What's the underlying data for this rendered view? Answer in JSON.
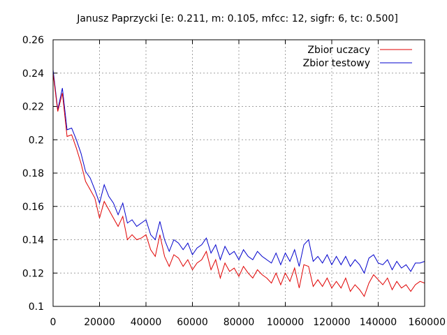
{
  "chart_data": {
    "type": "line",
    "title": "Janusz Paprzycki [e: 0.211, m: 0.105, mfcc: 12, sigfr: 6, tc: 0.500]",
    "xlabel": "",
    "ylabel": "",
    "xlim": [
      0,
      160000
    ],
    "ylim": [
      0.1,
      0.26
    ],
    "xticks": [
      0,
      20000,
      40000,
      60000,
      80000,
      100000,
      120000,
      140000,
      160000
    ],
    "yticks": [
      0.1,
      0.12,
      0.14,
      0.16,
      0.18,
      0.2,
      0.22,
      0.24,
      0.26
    ],
    "xtick_labels": [
      "0",
      "20000",
      "40000",
      "60000",
      "80000",
      "100000",
      "120000",
      "140000",
      "160000"
    ],
    "ytick_labels": [
      "0.1",
      "0.12",
      "0.14",
      "0.16",
      "0.18",
      "0.2",
      "0.22",
      "0.24",
      "0.26"
    ],
    "grid": true,
    "legend_position": "top-right",
    "series": [
      {
        "name": "Zbior uczacy",
        "color": "#e00000",
        "x": [
          0,
          2000,
          4000,
          6000,
          8000,
          10000,
          12000,
          14000,
          16000,
          18000,
          20000,
          22000,
          24000,
          26000,
          28000,
          30000,
          32000,
          34000,
          36000,
          38000,
          40000,
          42000,
          44000,
          46000,
          48000,
          50000,
          52000,
          54000,
          56000,
          58000,
          60000,
          62000,
          64000,
          66000,
          68000,
          70000,
          72000,
          74000,
          76000,
          78000,
          80000,
          82000,
          84000,
          86000,
          88000,
          90000,
          92000,
          94000,
          96000,
          98000,
          100000,
          102000,
          104000,
          106000,
          108000,
          110000,
          112000,
          114000,
          116000,
          118000,
          120000,
          122000,
          124000,
          126000,
          128000,
          130000,
          132000,
          134000,
          136000,
          138000,
          140000,
          142000,
          144000,
          146000,
          148000,
          150000,
          152000,
          154000,
          156000,
          158000,
          160000
        ],
        "y": [
          0.24,
          0.217,
          0.228,
          0.202,
          0.203,
          0.195,
          0.186,
          0.175,
          0.17,
          0.165,
          0.153,
          0.163,
          0.158,
          0.153,
          0.148,
          0.154,
          0.14,
          0.143,
          0.14,
          0.141,
          0.143,
          0.134,
          0.13,
          0.143,
          0.13,
          0.124,
          0.131,
          0.129,
          0.124,
          0.128,
          0.122,
          0.126,
          0.128,
          0.133,
          0.122,
          0.128,
          0.117,
          0.126,
          0.121,
          0.123,
          0.118,
          0.124,
          0.12,
          0.117,
          0.122,
          0.119,
          0.117,
          0.114,
          0.12,
          0.113,
          0.12,
          0.115,
          0.123,
          0.111,
          0.125,
          0.124,
          0.112,
          0.116,
          0.112,
          0.117,
          0.111,
          0.115,
          0.111,
          0.117,
          0.109,
          0.113,
          0.11,
          0.106,
          0.114,
          0.119,
          0.116,
          0.113,
          0.117,
          0.11,
          0.115,
          0.111,
          0.113,
          0.109,
          0.113,
          0.115,
          0.114
        ]
      },
      {
        "name": "Zbior testowy",
        "color": "#0000cc",
        "x": [
          0,
          2000,
          4000,
          6000,
          8000,
          10000,
          12000,
          14000,
          16000,
          18000,
          20000,
          22000,
          24000,
          26000,
          28000,
          30000,
          32000,
          34000,
          36000,
          38000,
          40000,
          42000,
          44000,
          46000,
          48000,
          50000,
          52000,
          54000,
          56000,
          58000,
          60000,
          62000,
          64000,
          66000,
          68000,
          70000,
          72000,
          74000,
          76000,
          78000,
          80000,
          82000,
          84000,
          86000,
          88000,
          90000,
          92000,
          94000,
          96000,
          98000,
          100000,
          102000,
          104000,
          106000,
          108000,
          110000,
          112000,
          114000,
          116000,
          118000,
          120000,
          122000,
          124000,
          126000,
          128000,
          130000,
          132000,
          134000,
          136000,
          138000,
          140000,
          142000,
          144000,
          146000,
          148000,
          150000,
          152000,
          154000,
          156000,
          158000,
          160000
        ],
        "y": [
          0.242,
          0.218,
          0.231,
          0.206,
          0.207,
          0.2,
          0.192,
          0.181,
          0.177,
          0.17,
          0.162,
          0.173,
          0.166,
          0.162,
          0.155,
          0.162,
          0.15,
          0.152,
          0.148,
          0.15,
          0.152,
          0.143,
          0.14,
          0.151,
          0.14,
          0.133,
          0.14,
          0.138,
          0.134,
          0.138,
          0.131,
          0.135,
          0.137,
          0.141,
          0.132,
          0.137,
          0.128,
          0.136,
          0.131,
          0.133,
          0.128,
          0.134,
          0.13,
          0.128,
          0.133,
          0.13,
          0.128,
          0.126,
          0.132,
          0.125,
          0.132,
          0.127,
          0.134,
          0.124,
          0.137,
          0.14,
          0.127,
          0.13,
          0.126,
          0.131,
          0.125,
          0.13,
          0.125,
          0.13,
          0.124,
          0.128,
          0.125,
          0.12,
          0.129,
          0.131,
          0.126,
          0.125,
          0.128,
          0.122,
          0.127,
          0.123,
          0.125,
          0.121,
          0.126,
          0.126,
          0.127
        ]
      }
    ]
  }
}
